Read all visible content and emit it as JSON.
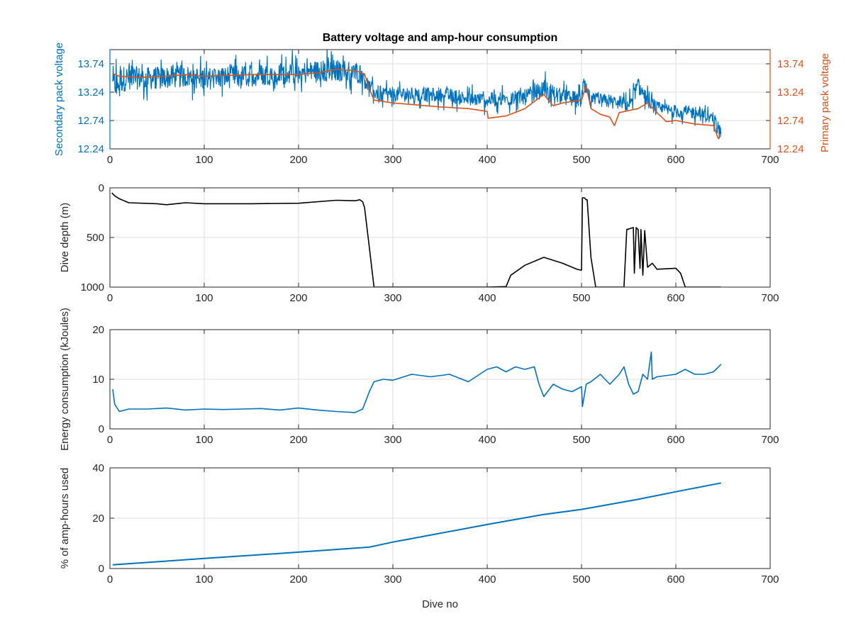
{
  "chart_data": [
    {
      "type": "line",
      "title": "Battery voltage and amp-hour consumption",
      "xlabel": "",
      "ylabel": "Secondary pack voltage",
      "ylabel_right": "Primary pack voltage",
      "xlim": [
        0,
        700
      ],
      "ylim": [
        12.24,
        13.99
      ],
      "xticks": [
        0,
        100,
        200,
        300,
        400,
        500,
        600,
        700
      ],
      "yticks": [
        12.24,
        12.74,
        13.24,
        13.74
      ],
      "ytick_labels": [
        "12.24",
        "12.74",
        "13.24",
        "13.74"
      ],
      "yticks_right": [
        12.24,
        12.74,
        13.24,
        13.74
      ],
      "ytick_labels_right": [
        "12.24",
        "12.74",
        "13.24",
        "13.74"
      ],
      "grid": true,
      "series": [
        {
          "axis": "left",
          "color": "#0072BD",
          "x": [
            3,
            10,
            20,
            40,
            60,
            80,
            100,
            120,
            140,
            160,
            180,
            200,
            220,
            240,
            260,
            268,
            275,
            285,
            300,
            330,
            360,
            380,
            400,
            420,
            440,
            460,
            480,
            500,
            502,
            510,
            530,
            550,
            560,
            570,
            580,
            600,
            620,
            640,
            648
          ],
          "y": [
            13.35,
            13.45,
            13.5,
            13.48,
            13.5,
            13.52,
            13.48,
            13.5,
            13.52,
            13.55,
            13.57,
            13.58,
            13.6,
            13.62,
            13.6,
            13.55,
            13.3,
            13.22,
            13.2,
            13.2,
            13.18,
            13.12,
            13.1,
            13.12,
            13.15,
            13.3,
            13.15,
            13.1,
            13.35,
            13.1,
            13.08,
            13.02,
            13.35,
            13.1,
            12.95,
            12.9,
            12.88,
            12.78,
            12.55
          ],
          "spread": [
            0.35,
            0.35,
            0.3,
            0.28,
            0.28,
            0.28,
            0.28,
            0.28,
            0.28,
            0.28,
            0.28,
            0.28,
            0.28,
            0.28,
            0.28,
            0.25,
            0.22,
            0.2,
            0.18,
            0.18,
            0.18,
            0.18,
            0.18,
            0.18,
            0.2,
            0.22,
            0.2,
            0.2,
            0.22,
            0.18,
            0.18,
            0.18,
            0.2,
            0.18,
            0.18,
            0.16,
            0.16,
            0.16,
            0.12
          ]
        },
        {
          "axis": "right",
          "color": "#D95319",
          "x": [
            3,
            10,
            30,
            60,
            80,
            100,
            150,
            200,
            220,
            240,
            260,
            270,
            275,
            280,
            300,
            350,
            380,
            400,
            401,
            420,
            440,
            460,
            470,
            480,
            500,
            505,
            510,
            520,
            530,
            535,
            540,
            560,
            570,
            580,
            590,
            600,
            620,
            640,
            645,
            648
          ],
          "y": [
            13.57,
            13.52,
            13.5,
            13.52,
            13.55,
            13.52,
            13.55,
            13.55,
            13.58,
            13.64,
            13.62,
            13.56,
            13.3,
            13.1,
            13.05,
            12.98,
            12.95,
            12.9,
            12.78,
            12.82,
            12.95,
            13.2,
            13.0,
            13.05,
            13.1,
            13.35,
            12.95,
            12.85,
            12.8,
            12.65,
            12.88,
            12.95,
            13.05,
            12.88,
            12.72,
            12.74,
            12.68,
            12.65,
            12.42,
            12.48
          ]
        }
      ]
    },
    {
      "type": "line",
      "title": "",
      "xlabel": "",
      "ylabel": "Dive depth (m)",
      "xlim": [
        0,
        700
      ],
      "ylim": [
        0,
        1000
      ],
      "y_reversed": true,
      "xticks": [
        0,
        100,
        200,
        300,
        400,
        500,
        600,
        700
      ],
      "yticks": [
        0,
        500,
        1000
      ],
      "grid": true,
      "series": [
        {
          "color": "#000000",
          "x": [
            2,
            5,
            10,
            20,
            50,
            60,
            80,
            100,
            150,
            200,
            240,
            260,
            265,
            268,
            270,
            275,
            280,
            300,
            350,
            400,
            420,
            425,
            440,
            460,
            480,
            495,
            500,
            501,
            503,
            505,
            506,
            510,
            515,
            520,
            545,
            548,
            555,
            556,
            558,
            560,
            562,
            563,
            565,
            567,
            570,
            575,
            580,
            600,
            605,
            610,
            620,
            648
          ],
          "y": [
            50,
            80,
            110,
            150,
            160,
            170,
            150,
            160,
            160,
            155,
            125,
            130,
            120,
            140,
            200,
            600,
            1000,
            1000,
            1000,
            1000,
            995,
            880,
            780,
            700,
            760,
            820,
            830,
            100,
            100,
            120,
            120,
            700,
            1000,
            1000,
            1000,
            420,
            400,
            860,
            400,
            420,
            810,
            420,
            880,
            430,
            800,
            760,
            820,
            810,
            860,
            1000,
            1000,
            1000
          ]
        }
      ]
    },
    {
      "type": "line",
      "title": "",
      "xlabel": "",
      "ylabel": "Energy consumption (kJoules)",
      "xlim": [
        0,
        700
      ],
      "ylim": [
        0,
        20
      ],
      "xticks": [
        0,
        100,
        200,
        300,
        400,
        500,
        600,
        700
      ],
      "yticks": [
        0,
        10,
        20
      ],
      "grid": true,
      "series": [
        {
          "color": "#0072BD",
          "x": [
            3,
            5,
            10,
            20,
            40,
            60,
            80,
            100,
            120,
            140,
            160,
            180,
            200,
            220,
            240,
            260,
            268,
            272,
            275,
            280,
            290,
            300,
            320,
            340,
            360,
            380,
            400,
            410,
            420,
            430,
            440,
            450,
            455,
            460,
            470,
            480,
            490,
            500,
            501,
            505,
            510,
            520,
            530,
            540,
            545,
            550,
            555,
            560,
            565,
            570,
            574,
            575,
            580,
            600,
            610,
            620,
            630,
            640,
            648
          ],
          "y": [
            8,
            5,
            3.5,
            4,
            4,
            4.2,
            3.8,
            4,
            3.9,
            4,
            4.1,
            3.8,
            4.2,
            3.8,
            3.5,
            3.3,
            4,
            6,
            7.5,
            9.5,
            10,
            9.8,
            11,
            10.5,
            11,
            9.5,
            12,
            12.5,
            11.5,
            12.5,
            12,
            12.5,
            9,
            6.5,
            9,
            8,
            7.5,
            8.5,
            4.5,
            9,
            9.5,
            11,
            9,
            11,
            12.5,
            9,
            7,
            7.5,
            11,
            10,
            15.5,
            10,
            10.5,
            11,
            12,
            11,
            11,
            11.5,
            13
          ]
        }
      ]
    },
    {
      "type": "line",
      "title": "",
      "xlabel": "Dive no",
      "ylabel": "% of amp-hours used",
      "xlim": [
        0,
        700
      ],
      "ylim": [
        0,
        40
      ],
      "xticks": [
        0,
        100,
        200,
        300,
        400,
        500,
        600,
        700
      ],
      "yticks": [
        0,
        20,
        40
      ],
      "grid": true,
      "series": [
        {
          "color": "#0072BD",
          "x": [
            3,
            100,
            200,
            275,
            300,
            400,
            460,
            500,
            560,
            600,
            648
          ],
          "y": [
            1.5,
            4,
            6.5,
            8.5,
            10.5,
            17.5,
            21.5,
            23.5,
            27.5,
            30.5,
            34
          ]
        }
      ]
    }
  ]
}
